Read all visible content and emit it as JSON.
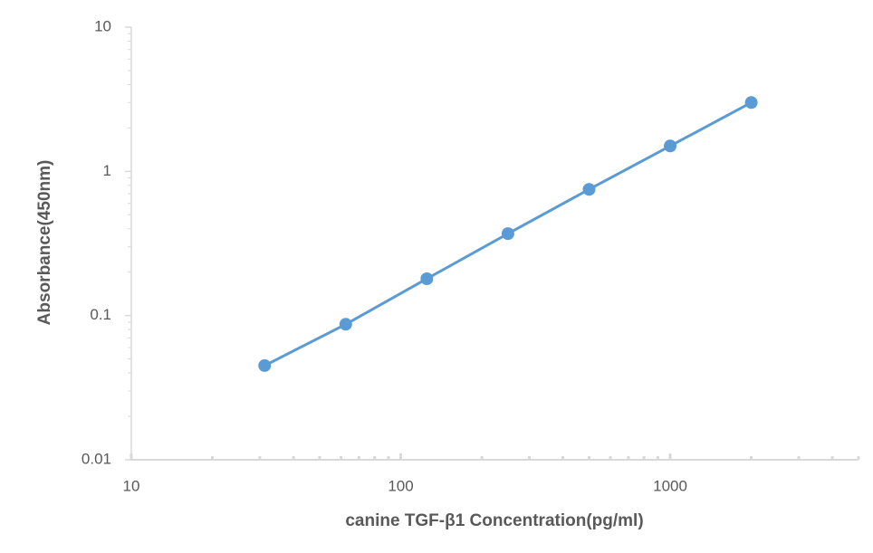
{
  "chart_data": {
    "type": "line",
    "x_label": "canine TGF-β1 Concentration(pg/ml)",
    "y_label": "Absorbance(450nm)",
    "x": [
      31.25,
      62.5,
      125,
      250,
      500,
      1000,
      2000
    ],
    "series": [
      {
        "color": "#5b9bd5",
        "values": [
          0.045,
          0.087,
          0.18,
          0.37,
          0.75,
          1.5,
          3.0
        ]
      }
    ],
    "xlim": [
      10,
      5000
    ],
    "xticks": [
      10,
      100,
      1000
    ],
    "ylim": [
      0.01,
      10
    ],
    "yticks": [
      0.01,
      0.1,
      1,
      10
    ],
    "xscale": "log",
    "yscale": "log",
    "minor_ticks": true,
    "grid": false
  }
}
